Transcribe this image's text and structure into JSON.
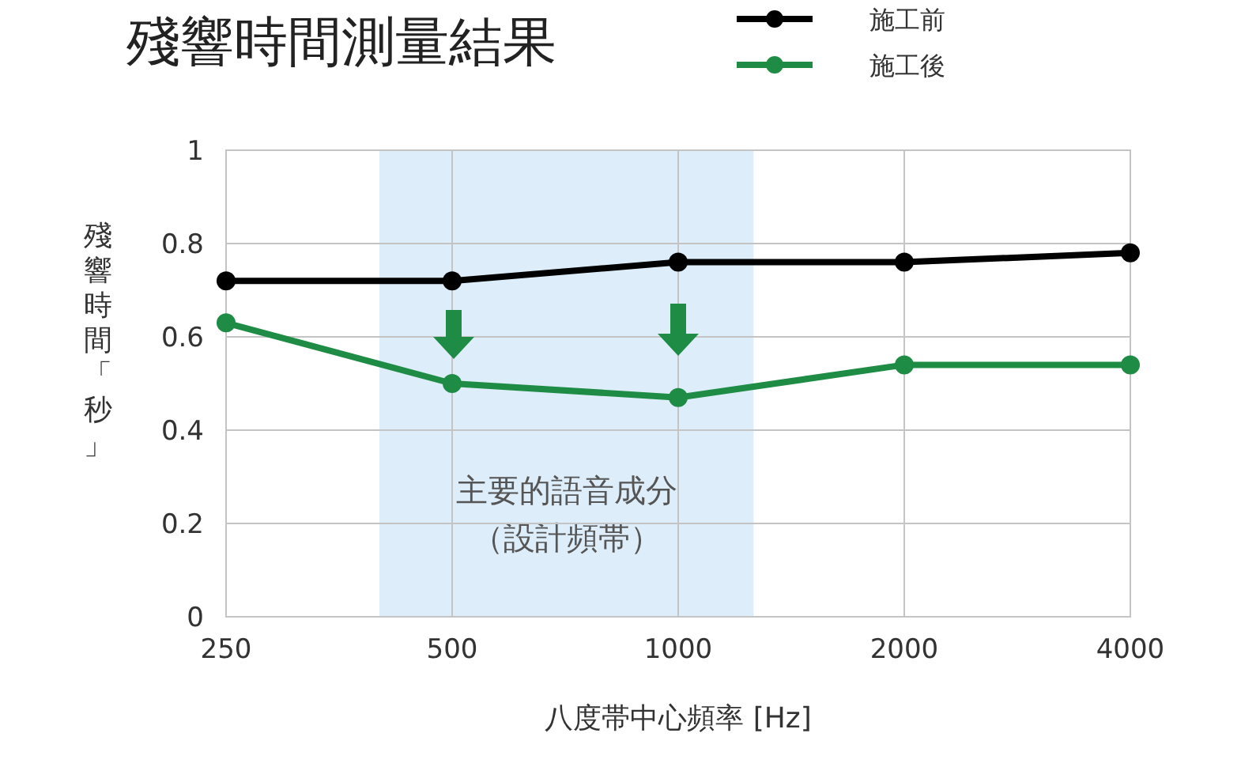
{
  "chart_data": {
    "type": "line",
    "title": "殘響時間測量結果",
    "xlabel": "八度帯中心頻率 [Hz]",
    "ylabel": "殘響時間「秒」",
    "x": [
      250,
      500,
      1000,
      2000,
      4000
    ],
    "log": "x",
    "xlim": [
      250,
      4000
    ],
    "xticks": [
      250,
      500,
      1000,
      2000,
      4000
    ],
    "ylim": [
      0,
      1
    ],
    "yticks": [
      0,
      0.2,
      0.4,
      0.6,
      0.8,
      1
    ],
    "series": [
      {
        "name": "施工前",
        "color": "#000000",
        "values": [
          0.72,
          0.72,
          0.76,
          0.76,
          0.78
        ]
      },
      {
        "name": "施工後",
        "color": "#1f8c45",
        "values": [
          0.63,
          0.5,
          0.47,
          0.54,
          0.54
        ]
      }
    ],
    "bands": [
      {
        "axis": "x",
        "from": 400,
        "to": 1260,
        "label": "主要的語音成分（設計頻帯）",
        "color": "#ddeefa"
      }
    ],
    "grid": true,
    "legend": "top right",
    "marker": "circle",
    "line_style": "solid"
  }
}
